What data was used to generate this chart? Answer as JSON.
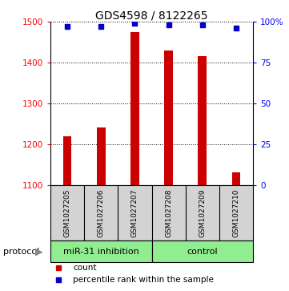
{
  "title": "GDS4598 / 8122265",
  "samples": [
    "GSM1027205",
    "GSM1027206",
    "GSM1027207",
    "GSM1027208",
    "GSM1027209",
    "GSM1027210"
  ],
  "counts": [
    1220,
    1240,
    1475,
    1430,
    1415,
    1130
  ],
  "percentiles": [
    97,
    97,
    99,
    98,
    98,
    96
  ],
  "bar_color": "#CC0000",
  "dot_color": "#0000CC",
  "ylim_left": [
    1100,
    1500
  ],
  "ylim_right": [
    0,
    100
  ],
  "yticks_left": [
    1100,
    1200,
    1300,
    1400,
    1500
  ],
  "yticks_right": [
    0,
    25,
    50,
    75,
    100
  ],
  "legend_count_label": "count",
  "legend_pct_label": "percentile rank within the sample",
  "protocol_label": "protocol",
  "bg_sample_box": "#D3D3D3",
  "bg_group_green": "#90EE90",
  "title_fontsize": 10,
  "tick_fontsize": 7.5,
  "sample_fontsize": 6.5,
  "group_fontsize": 8,
  "legend_fontsize": 7.5,
  "protocol_fontsize": 8,
  "bar_width": 0.25,
  "groups_info": [
    {
      "label": "miR-31 inhibition",
      "start": 0,
      "end": 2
    },
    {
      "label": "control",
      "start": 3,
      "end": 5
    }
  ]
}
